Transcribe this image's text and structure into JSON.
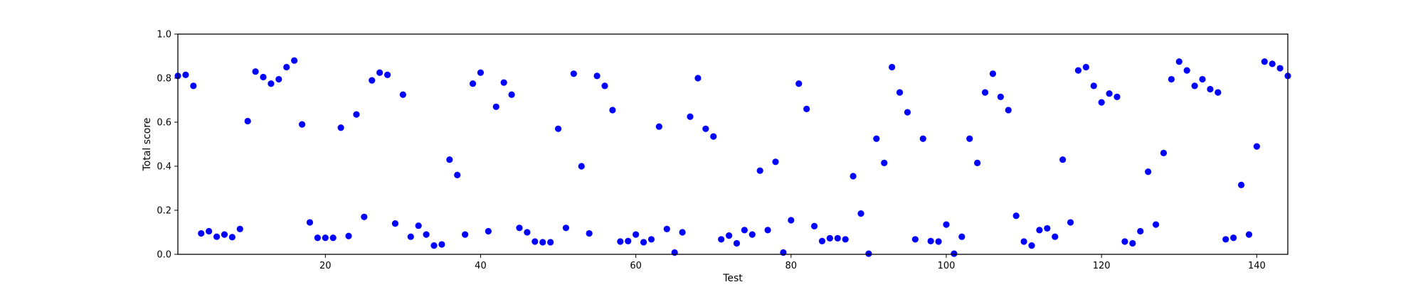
{
  "chart_data": {
    "type": "scatter",
    "title": "",
    "xlabel": "Test",
    "ylabel": "Total score",
    "xlim": [
      1,
      144
    ],
    "ylim": [
      0.0,
      1.0
    ],
    "x_ticks": [
      20,
      40,
      60,
      80,
      100,
      120,
      140
    ],
    "y_ticks": [
      0.0,
      0.2,
      0.4,
      0.6,
      0.8,
      1.0
    ],
    "x_tick_labels": [
      "20",
      "40",
      "60",
      "80",
      "100",
      "120",
      "140"
    ],
    "y_tick_labels": [
      "0.0",
      "0.2",
      "0.4",
      "0.6",
      "0.8",
      "1.0"
    ],
    "grid": false,
    "legend": "none",
    "marker_color": "#0000ff",
    "x": [
      1,
      2,
      3,
      4,
      5,
      6,
      7,
      8,
      9,
      10,
      11,
      12,
      13,
      14,
      15,
      16,
      17,
      18,
      19,
      20,
      21,
      22,
      23,
      24,
      25,
      26,
      27,
      28,
      29,
      30,
      31,
      32,
      33,
      34,
      35,
      36,
      37,
      38,
      39,
      40,
      41,
      42,
      43,
      44,
      45,
      46,
      47,
      48,
      49,
      50,
      51,
      52,
      53,
      54,
      55,
      56,
      57,
      58,
      59,
      60,
      61,
      62,
      63,
      64,
      65,
      66,
      67,
      68,
      69,
      70,
      71,
      72,
      73,
      74,
      75,
      76,
      77,
      78,
      79,
      80,
      81,
      82,
      83,
      84,
      85,
      86,
      87,
      88,
      89,
      90,
      91,
      92,
      93,
      94,
      95,
      96,
      97,
      98,
      99,
      100,
      101,
      102,
      103,
      104,
      105,
      106,
      107,
      108,
      109,
      110,
      111,
      112,
      113,
      114,
      115,
      116,
      117,
      118,
      119,
      120,
      121,
      122,
      123,
      124,
      125,
      126,
      127,
      128,
      129,
      130,
      131,
      132,
      133,
      134,
      135,
      136,
      137,
      138,
      139,
      140,
      141,
      142,
      143,
      144
    ],
    "y": [
      0.81,
      0.815,
      0.765,
      0.095,
      0.105,
      0.08,
      0.09,
      0.078,
      0.115,
      0.605,
      0.83,
      0.805,
      0.775,
      0.795,
      0.85,
      0.88,
      0.59,
      0.145,
      0.075,
      0.075,
      0.075,
      0.575,
      0.083,
      0.635,
      0.17,
      0.79,
      0.825,
      0.815,
      0.14,
      0.725,
      0.08,
      0.13,
      0.09,
      0.04,
      0.045,
      0.43,
      0.36,
      0.09,
      0.775,
      0.825,
      0.105,
      0.67,
      0.78,
      0.725,
      0.12,
      0.1,
      0.058,
      0.055,
      0.055,
      0.57,
      0.12,
      0.82,
      0.4,
      0.095,
      0.81,
      0.765,
      0.655,
      0.058,
      0.06,
      0.09,
      0.055,
      0.068,
      0.58,
      0.115,
      0.008,
      0.1,
      0.625,
      0.8,
      0.57,
      0.535,
      0.068,
      0.085,
      0.05,
      0.11,
      0.09,
      0.38,
      0.11,
      0.42,
      0.008,
      0.155,
      0.775,
      0.66,
      0.128,
      0.06,
      0.073,
      0.073,
      0.068,
      0.355,
      0.185,
      0.003,
      0.525,
      0.415,
      0.85,
      0.735,
      0.645,
      0.068,
      0.525,
      0.06,
      0.058,
      0.135,
      0.003,
      0.08,
      0.525,
      0.415,
      0.735,
      0.82,
      0.715,
      0.655,
      0.175,
      0.058,
      0.04,
      0.11,
      0.118,
      0.08,
      0.43,
      0.145,
      0.835,
      0.85,
      0.765,
      0.69,
      0.73,
      0.715,
      0.058,
      0.05,
      0.105,
      0.375,
      0.135,
      0.46,
      0.795,
      0.875,
      0.835,
      0.765,
      0.795,
      0.75,
      0.735,
      0.068,
      0.075,
      0.315,
      0.09,
      0.49,
      0.875,
      0.865,
      0.845,
      0.81
    ]
  }
}
